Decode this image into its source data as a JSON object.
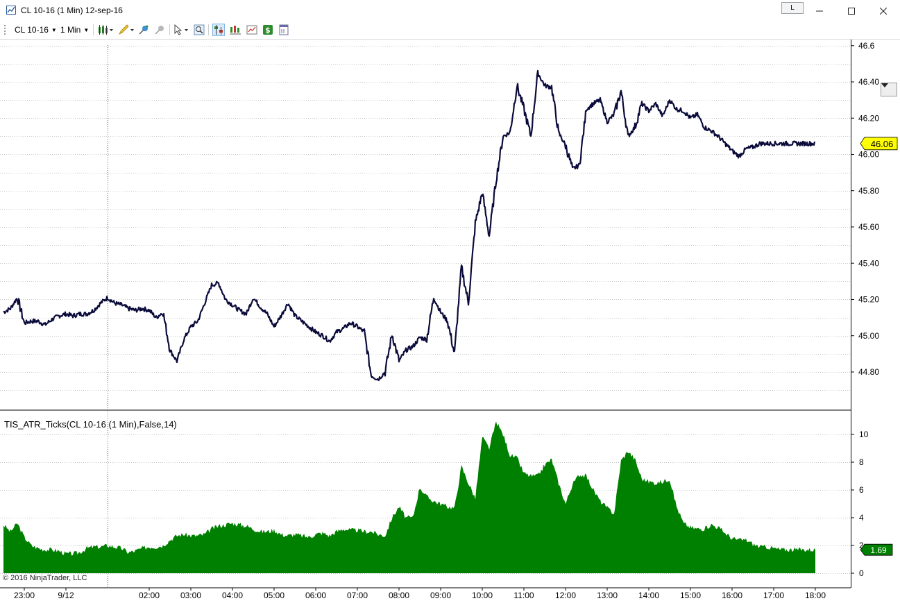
{
  "window": {
    "title": "CL 10-16 (1 Min)  12-sep-16",
    "l_button": "L",
    "minimize_icon": "minimize-icon",
    "maximize_icon": "maximize-icon",
    "close_icon": "close-icon"
  },
  "toolbar": {
    "instrument": "CL 10-16",
    "interval": "1 Min",
    "icons": [
      "bar-type-icon",
      "pencil-draw-icon",
      "pin-icon",
      "pin-disabled-icon",
      "cursor-icon",
      "zoom-icon",
      "data-box-icon",
      "chart-style-icon",
      "chart-properties-icon",
      "dollar-icon",
      "template-icon"
    ]
  },
  "chart_data": [
    {
      "type": "line",
      "title": "",
      "series": [
        {
          "name": "CL 10-16 (1 Min)",
          "color": "#0b0b3b",
          "x": [
            "22:30",
            "22:40",
            "22:50",
            "23:00",
            "23:10",
            "23:20",
            "23:30",
            "23:40",
            "23:50",
            "00:00",
            "00:10",
            "00:20",
            "00:30",
            "00:40",
            "00:50",
            "01:00",
            "01:10",
            "01:20",
            "01:30",
            "01:40",
            "01:50",
            "02:00",
            "02:10",
            "02:20",
            "02:30",
            "02:40",
            "02:50",
            "03:00",
            "03:10",
            "03:20",
            "03:30",
            "03:40",
            "03:50",
            "04:00",
            "04:10",
            "04:20",
            "04:30",
            "04:40",
            "04:50",
            "05:00",
            "05:10",
            "05:20",
            "05:30",
            "05:40",
            "05:50",
            "06:00",
            "06:10",
            "06:20",
            "06:30",
            "06:40",
            "06:50",
            "07:00",
            "07:10",
            "07:20",
            "07:30",
            "07:40",
            "07:50",
            "08:00",
            "08:10",
            "08:20",
            "08:30",
            "08:40",
            "08:50",
            "09:00",
            "09:10",
            "09:20",
            "09:30",
            "09:40",
            "09:50",
            "10:00",
            "10:10",
            "10:20",
            "10:30",
            "10:40",
            "10:50",
            "11:00",
            "11:10",
            "11:20",
            "11:30",
            "11:40",
            "11:50",
            "12:00",
            "12:10",
            "12:20",
            "12:30",
            "12:40",
            "12:50",
            "13:00",
            "13:10",
            "13:20",
            "13:30",
            "13:40",
            "13:50",
            "14:00",
            "14:10",
            "14:20",
            "14:30",
            "14:40",
            "14:50",
            "15:00",
            "15:10",
            "15:20",
            "15:30",
            "15:40",
            "15:50",
            "16:00",
            "16:10",
            "16:20",
            "16:30",
            "16:40",
            "16:50",
            "17:00",
            "17:10",
            "17:20",
            "17:30",
            "17:40",
            "17:50",
            "18:00"
          ],
          "values": [
            45.13,
            45.15,
            45.21,
            45.07,
            45.08,
            45.08,
            45.06,
            45.09,
            45.11,
            45.12,
            45.11,
            45.12,
            45.12,
            45.14,
            45.18,
            45.21,
            45.18,
            45.17,
            45.15,
            45.14,
            45.15,
            45.14,
            45.1,
            45.13,
            44.92,
            44.86,
            44.98,
            45.05,
            45.08,
            45.18,
            45.28,
            45.29,
            45.2,
            45.17,
            45.14,
            45.12,
            45.21,
            45.16,
            45.12,
            45.05,
            45.11,
            45.18,
            45.11,
            45.08,
            45.05,
            45.02,
            45.0,
            44.97,
            45.02,
            45.04,
            45.07,
            45.05,
            45.02,
            44.78,
            44.76,
            44.8,
            45.01,
            44.86,
            44.92,
            44.94,
            44.99,
            44.98,
            45.21,
            45.13,
            45.08,
            44.9,
            45.38,
            45.18,
            45.62,
            45.79,
            45.55,
            45.86,
            46.1,
            46.12,
            46.38,
            46.25,
            46.1,
            46.45,
            46.38,
            46.37,
            46.12,
            46.05,
            45.92,
            45.94,
            46.25,
            46.28,
            46.3,
            46.18,
            46.22,
            46.35,
            46.1,
            46.15,
            46.28,
            46.24,
            46.28,
            46.21,
            46.3,
            46.25,
            46.24,
            46.2,
            46.22,
            46.15,
            46.13,
            46.1,
            46.06,
            46.02,
            45.99,
            46.03,
            46.04,
            46.06,
            46.06,
            46.06,
            46.06,
            46.06,
            46.06,
            46.06,
            46.06,
            46.06
          ]
        }
      ],
      "ylim": [
        44.65,
        46.6
      ],
      "yticks": [
        "44.80",
        "45.00",
        "45.20",
        "45.40",
        "45.60",
        "45.80",
        "46.00",
        "46.20",
        "46.40",
        "46.6"
      ],
      "xticks": [
        "23:00",
        "9/12",
        "02:00",
        "03:00",
        "04:00",
        "05:00",
        "06:00",
        "07:00",
        "08:00",
        "09:00",
        "10:00",
        "11:00",
        "12:00",
        "13:00",
        "14:00",
        "15:00",
        "16:00",
        "17:00",
        "18:00"
      ],
      "last_value_label": "46.06",
      "last_value_color": "#ffff00",
      "grid": true
    },
    {
      "type": "area",
      "title": "TIS_ATR_Ticks(CL 10-16 (1 Min),False,14)",
      "series": [
        {
          "name": "TIS_ATR_Ticks",
          "color": "#008000",
          "x": [
            "22:30",
            "22:40",
            "22:50",
            "23:00",
            "23:10",
            "23:20",
            "23:30",
            "23:40",
            "23:50",
            "00:00",
            "00:10",
            "00:20",
            "00:30",
            "00:40",
            "00:50",
            "01:00",
            "01:10",
            "01:20",
            "01:30",
            "01:40",
            "01:50",
            "02:00",
            "02:10",
            "02:20",
            "02:30",
            "02:40",
            "02:50",
            "03:00",
            "03:10",
            "03:20",
            "03:30",
            "03:40",
            "03:50",
            "04:00",
            "04:10",
            "04:20",
            "04:30",
            "04:40",
            "04:50",
            "05:00",
            "05:10",
            "05:20",
            "05:30",
            "05:40",
            "05:50",
            "06:00",
            "06:10",
            "06:20",
            "06:30",
            "06:40",
            "06:50",
            "07:00",
            "07:10",
            "07:20",
            "07:30",
            "07:40",
            "07:50",
            "08:00",
            "08:10",
            "08:20",
            "08:30",
            "08:40",
            "08:50",
            "09:00",
            "09:10",
            "09:20",
            "09:30",
            "09:40",
            "09:50",
            "10:00",
            "10:10",
            "10:20",
            "10:30",
            "10:40",
            "10:50",
            "11:00",
            "11:10",
            "11:20",
            "11:30",
            "11:40",
            "11:50",
            "12:00",
            "12:10",
            "12:20",
            "12:30",
            "12:40",
            "12:50",
            "13:00",
            "13:10",
            "13:20",
            "13:30",
            "13:40",
            "13:50",
            "14:00",
            "14:10",
            "14:20",
            "14:30",
            "14:40",
            "14:50",
            "15:00",
            "15:10",
            "15:20",
            "15:30",
            "15:40",
            "15:50",
            "16:00",
            "16:10",
            "16:20",
            "16:30",
            "16:40",
            "16:50",
            "17:00",
            "17:10",
            "17:20",
            "17:30",
            "17:40",
            "17:50",
            "18:00"
          ],
          "values": [
            3.5,
            3.0,
            3.6,
            2.6,
            2.0,
            1.8,
            1.7,
            1.7,
            1.6,
            1.4,
            1.4,
            1.5,
            1.8,
            1.9,
            1.9,
            2.0,
            1.9,
            1.8,
            1.5,
            1.6,
            1.8,
            1.9,
            1.9,
            2.0,
            2.4,
            2.7,
            2.8,
            2.7,
            2.7,
            2.8,
            3.2,
            3.4,
            3.5,
            3.6,
            3.5,
            3.4,
            3.2,
            3.0,
            3.0,
            3.1,
            2.8,
            2.7,
            2.8,
            2.7,
            2.6,
            2.8,
            2.9,
            2.7,
            3.0,
            3.2,
            3.1,
            3.1,
            3.0,
            3.0,
            2.8,
            2.7,
            4.0,
            4.8,
            4.0,
            4.0,
            6.2,
            5.5,
            5.2,
            5.0,
            4.8,
            4.7,
            7.7,
            6.5,
            5.4,
            9.8,
            9.0,
            10.9,
            10.0,
            8.5,
            8.3,
            7.2,
            7.0,
            7.0,
            7.8,
            8.2,
            6.5,
            5.0,
            6.4,
            7.1,
            7.0,
            6.0,
            5.2,
            4.7,
            4.3,
            8.1,
            8.8,
            8.2,
            6.8,
            6.6,
            6.5,
            6.6,
            6.8,
            4.8,
            3.6,
            3.3,
            3.2,
            3.2,
            3.5,
            3.3,
            2.9,
            2.5,
            2.4,
            2.4,
            2.1,
            1.9,
            1.9,
            1.8,
            1.7,
            1.7,
            1.7,
            1.7,
            1.7,
            1.69
          ],
          "x_last": "18:00"
        }
      ],
      "ylim": [
        -0.5,
        11.5
      ],
      "yticks": [
        "0",
        "2",
        "4",
        "6",
        "8",
        "10"
      ],
      "last_value_label": "1.69",
      "last_value_color": "#008000",
      "grid": true
    }
  ],
  "footer": {
    "copyright": "© 2016 NinjaTrader, LLC"
  },
  "session_break_label": "9/12"
}
